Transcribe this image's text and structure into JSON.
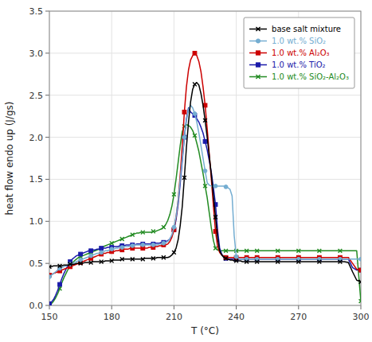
{
  "chart_data": {
    "type": "line",
    "xlabel": "T (°C)",
    "ylabel": "heat flow endo up (J/gs)",
    "xlim": [
      150,
      300
    ],
    "ylim": [
      0,
      3.5
    ],
    "xticks": [
      150,
      180,
      210,
      240,
      270,
      300
    ],
    "yticks": [
      {
        "value": 0,
        "label": "0.0"
      },
      0.5,
      {
        "value": 1.0,
        "label": "1.0"
      },
      1.5,
      {
        "value": 2.0,
        "label": "2.0"
      },
      2.5,
      {
        "value": 3.0,
        "label": "3.0"
      },
      3.5
    ],
    "grid": true,
    "legend": "upper right",
    "x": [
      150,
      151,
      152,
      153,
      154,
      155,
      156,
      157,
      158,
      159,
      160,
      161,
      162,
      163,
      164,
      165,
      166,
      167,
      168,
      169,
      170,
      171,
      172,
      173,
      174,
      175,
      176,
      177,
      178,
      179,
      180,
      181,
      182,
      183,
      184,
      185,
      186,
      187,
      188,
      189,
      190,
      191,
      192,
      193,
      194,
      195,
      196,
      197,
      198,
      199,
      200,
      201,
      202,
      203,
      204,
      205,
      206,
      207,
      208,
      209,
      210,
      211,
      212,
      213,
      214,
      215,
      216,
      217,
      218,
      219,
      220,
      221,
      222,
      223,
      224,
      225,
      226,
      227,
      228,
      229,
      230,
      231,
      232,
      233,
      234,
      235,
      236,
      237,
      238,
      239,
      240,
      241,
      242,
      243,
      244,
      245,
      246,
      247,
      248,
      249,
      250,
      252,
      254,
      256,
      258,
      260,
      262,
      264,
      266,
      268,
      270,
      272,
      274,
      276,
      278,
      280,
      282,
      284,
      286,
      288,
      290,
      292,
      294,
      296,
      298,
      300
    ],
    "series": [
      {
        "name": "base salt mixture",
        "color": "#000000",
        "marker": "x",
        "values": [
          0.46,
          0.46,
          0.47,
          0.47,
          0.47,
          0.47,
          0.47,
          0.48,
          0.48,
          0.48,
          0.49,
          0.49,
          0.49,
          0.5,
          0.5,
          0.5,
          0.5,
          0.51,
          0.51,
          0.51,
          0.51,
          0.52,
          0.52,
          0.52,
          0.52,
          0.52,
          0.52,
          0.53,
          0.53,
          0.53,
          0.53,
          0.54,
          0.54,
          0.54,
          0.54,
          0.55,
          0.55,
          0.55,
          0.55,
          0.55,
          0.55,
          0.55,
          0.55,
          0.55,
          0.55,
          0.55,
          0.56,
          0.56,
          0.56,
          0.56,
          0.56,
          0.56,
          0.57,
          0.57,
          0.57,
          0.57,
          0.57,
          0.57,
          0.58,
          0.6,
          0.63,
          0.68,
          0.78,
          0.95,
          1.18,
          1.52,
          1.88,
          2.18,
          2.42,
          2.57,
          2.63,
          2.65,
          2.62,
          2.52,
          2.38,
          2.2,
          2.0,
          1.78,
          1.55,
          1.3,
          1.05,
          0.8,
          0.65,
          0.6,
          0.57,
          0.56,
          0.55,
          0.54,
          0.54,
          0.53,
          0.53,
          0.53,
          0.53,
          0.52,
          0.52,
          0.52,
          0.52,
          0.52,
          0.52,
          0.52,
          0.52,
          0.52,
          0.52,
          0.52,
          0.52,
          0.52,
          0.52,
          0.52,
          0.52,
          0.52,
          0.52,
          0.52,
          0.52,
          0.52,
          0.52,
          0.52,
          0.52,
          0.52,
          0.52,
          0.52,
          0.52,
          0.52,
          0.51,
          0.4,
          0.3,
          0.28
        ]
      },
      {
        "name": "1.0 wt.% SiO₂",
        "color": "#74add1",
        "marker": "circle",
        "values": [
          0.34,
          0.36,
          0.38,
          0.4,
          0.42,
          0.44,
          0.45,
          0.46,
          0.47,
          0.48,
          0.49,
          0.5,
          0.51,
          0.52,
          0.53,
          0.54,
          0.55,
          0.56,
          0.57,
          0.58,
          0.59,
          0.6,
          0.61,
          0.62,
          0.62,
          0.63,
          0.64,
          0.65,
          0.65,
          0.66,
          0.67,
          0.67,
          0.68,
          0.68,
          0.69,
          0.69,
          0.7,
          0.7,
          0.7,
          0.71,
          0.71,
          0.72,
          0.72,
          0.72,
          0.72,
          0.72,
          0.72,
          0.72,
          0.72,
          0.72,
          0.72,
          0.72,
          0.72,
          0.73,
          0.73,
          0.74,
          0.75,
          0.76,
          0.79,
          0.84,
          0.93,
          1.06,
          1.25,
          1.5,
          1.75,
          2.0,
          2.2,
          2.33,
          2.38,
          2.35,
          2.28,
          2.18,
          2.05,
          1.9,
          1.75,
          1.6,
          1.46,
          1.43,
          1.42,
          1.42,
          1.42,
          1.42,
          1.42,
          1.42,
          1.42,
          1.41,
          1.4,
          1.38,
          1.3,
          0.83,
          0.58,
          0.56,
          0.55,
          0.55,
          0.55,
          0.55,
          0.55,
          0.55,
          0.55,
          0.55,
          0.55,
          0.55,
          0.55,
          0.55,
          0.55,
          0.55,
          0.55,
          0.55,
          0.55,
          0.55,
          0.55,
          0.55,
          0.55,
          0.55,
          0.55,
          0.55,
          0.55,
          0.55,
          0.55,
          0.55,
          0.55,
          0.55,
          0.55,
          0.55,
          0.55,
          0.55
        ]
      },
      {
        "name": "1.0 wt.% Al₂O₃",
        "color": "#cc0000",
        "marker": "square",
        "values": [
          0.36,
          0.37,
          0.38,
          0.39,
          0.4,
          0.41,
          0.42,
          0.43,
          0.44,
          0.45,
          0.46,
          0.47,
          0.48,
          0.49,
          0.5,
          0.51,
          0.52,
          0.53,
          0.54,
          0.55,
          0.56,
          0.57,
          0.58,
          0.59,
          0.6,
          0.61,
          0.62,
          0.62,
          0.63,
          0.63,
          0.64,
          0.64,
          0.65,
          0.65,
          0.66,
          0.66,
          0.67,
          0.67,
          0.67,
          0.68,
          0.68,
          0.68,
          0.68,
          0.68,
          0.68,
          0.68,
          0.68,
          0.68,
          0.69,
          0.69,
          0.69,
          0.7,
          0.7,
          0.71,
          0.71,
          0.72,
          0.72,
          0.73,
          0.76,
          0.81,
          0.9,
          1.05,
          1.25,
          1.55,
          1.9,
          2.3,
          2.6,
          2.8,
          2.92,
          2.97,
          3.0,
          2.97,
          2.9,
          2.78,
          2.6,
          2.38,
          2.1,
          1.8,
          1.5,
          1.18,
          0.88,
          0.7,
          0.63,
          0.6,
          0.58,
          0.57,
          0.57,
          0.57,
          0.57,
          0.57,
          0.57,
          0.57,
          0.57,
          0.57,
          0.57,
          0.57,
          0.57,
          0.57,
          0.57,
          0.57,
          0.57,
          0.57,
          0.57,
          0.57,
          0.57,
          0.57,
          0.57,
          0.57,
          0.57,
          0.57,
          0.57,
          0.57,
          0.57,
          0.57,
          0.57,
          0.57,
          0.57,
          0.57,
          0.57,
          0.57,
          0.57,
          0.57,
          0.57,
          0.5,
          0.43,
          0.42
        ]
      },
      {
        "name": "1.0 wt.% TiO₂",
        "color": "#1a1aaa",
        "marker": "square",
        "values": [
          0.02,
          0.04,
          0.07,
          0.12,
          0.18,
          0.25,
          0.32,
          0.38,
          0.43,
          0.48,
          0.52,
          0.55,
          0.57,
          0.59,
          0.6,
          0.61,
          0.62,
          0.63,
          0.64,
          0.65,
          0.65,
          0.66,
          0.66,
          0.67,
          0.67,
          0.68,
          0.68,
          0.68,
          0.69,
          0.69,
          0.69,
          0.7,
          0.7,
          0.7,
          0.71,
          0.71,
          0.71,
          0.72,
          0.72,
          0.72,
          0.72,
          0.72,
          0.73,
          0.73,
          0.73,
          0.73,
          0.73,
          0.73,
          0.73,
          0.73,
          0.73,
          0.74,
          0.74,
          0.74,
          0.75,
          0.75,
          0.76,
          0.77,
          0.79,
          0.83,
          0.9,
          1.02,
          1.2,
          1.45,
          1.72,
          2.0,
          2.22,
          2.35,
          2.3,
          2.28,
          2.26,
          2.22,
          2.18,
          2.12,
          2.05,
          1.95,
          1.85,
          1.72,
          1.58,
          1.4,
          1.2,
          0.9,
          0.68,
          0.61,
          0.58,
          0.56,
          0.55,
          0.55,
          0.55,
          0.55,
          0.55,
          0.55,
          0.55,
          0.55,
          0.55,
          0.55,
          0.55,
          0.55,
          0.55,
          0.55,
          0.55,
          0.55,
          0.55,
          0.55,
          0.55,
          0.55,
          0.55,
          0.55,
          0.55,
          0.55,
          0.55,
          0.55,
          0.55,
          0.55,
          0.55,
          0.55,
          0.55,
          0.55,
          0.55,
          0.55,
          0.55,
          0.55,
          0.55,
          0.45,
          0.42,
          0.42
        ]
      },
      {
        "name": "1.0 wt.% SiO₂-Al₂O₃",
        "color": "#228B22",
        "marker": "x",
        "values": [
          0.0,
          0.02,
          0.05,
          0.09,
          0.14,
          0.2,
          0.27,
          0.33,
          0.38,
          0.43,
          0.47,
          0.5,
          0.53,
          0.55,
          0.57,
          0.58,
          0.59,
          0.6,
          0.61,
          0.62,
          0.63,
          0.64,
          0.65,
          0.66,
          0.67,
          0.68,
          0.7,
          0.71,
          0.72,
          0.73,
          0.74,
          0.75,
          0.76,
          0.77,
          0.78,
          0.79,
          0.8,
          0.81,
          0.82,
          0.83,
          0.84,
          0.85,
          0.86,
          0.86,
          0.87,
          0.87,
          0.87,
          0.87,
          0.87,
          0.87,
          0.88,
          0.88,
          0.89,
          0.9,
          0.91,
          0.93,
          0.96,
          1.01,
          1.08,
          1.18,
          1.32,
          1.5,
          1.7,
          1.9,
          2.07,
          2.13,
          2.15,
          2.14,
          2.12,
          2.08,
          2.02,
          1.93,
          1.83,
          1.7,
          1.57,
          1.42,
          1.28,
          1.1,
          0.92,
          0.77,
          0.68,
          0.66,
          0.65,
          0.65,
          0.65,
          0.65,
          0.65,
          0.65,
          0.65,
          0.65,
          0.65,
          0.65,
          0.65,
          0.65,
          0.65,
          0.65,
          0.65,
          0.65,
          0.65,
          0.65,
          0.65,
          0.65,
          0.65,
          0.65,
          0.65,
          0.65,
          0.65,
          0.65,
          0.65,
          0.65,
          0.65,
          0.65,
          0.65,
          0.65,
          0.65,
          0.65,
          0.65,
          0.65,
          0.65,
          0.65,
          0.65,
          0.65,
          0.65,
          0.65,
          0.65,
          0.05
        ]
      }
    ]
  }
}
